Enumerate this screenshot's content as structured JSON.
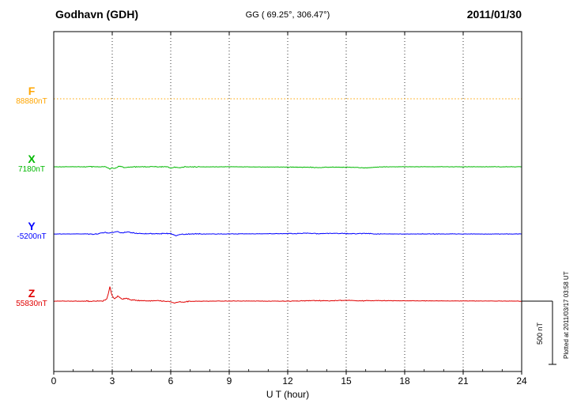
{
  "header": {
    "station": "Godhavn (GDH)",
    "coordinates": "GG ( 69.25°, 306.47°)",
    "date": "2011/01/30"
  },
  "footer": {
    "plotted_at": "Plotted at 2011/03/17 03:58 UT"
  },
  "chart_data": {
    "type": "line",
    "title": "Godhavn (GDH) magnetogram 2011/01/30",
    "xlabel": "U T (hour)",
    "xlim": [
      0,
      24
    ],
    "x_ticks": [
      0,
      3,
      6,
      9,
      12,
      15,
      18,
      21,
      24
    ],
    "grid": "vertical-dotted",
    "legend_position": "left",
    "scale_bar": {
      "label": "500 nT",
      "nT": 500
    },
    "series": [
      {
        "name": "F",
        "baseline_label": "88880nT",
        "color": "#FFA500",
        "style": "dotted",
        "noise_nT": 0.6,
        "points": [
          [
            0,
            0
          ],
          [
            24,
            0
          ]
        ]
      },
      {
        "name": "X",
        "baseline_label": "7180nT",
        "color": "#00B800",
        "style": "solid",
        "noise_nT": 3,
        "points": [
          [
            0,
            0
          ],
          [
            2.6,
            0
          ],
          [
            2.75,
            -8
          ],
          [
            2.9,
            -20
          ],
          [
            3.0,
            -6
          ],
          [
            3.15,
            -13
          ],
          [
            3.35,
            5
          ],
          [
            3.6,
            -5
          ],
          [
            4.0,
            -1
          ],
          [
            5.8,
            0
          ],
          [
            6.0,
            -9
          ],
          [
            6.2,
            -4
          ],
          [
            6.45,
            -8
          ],
          [
            6.7,
            -1
          ],
          [
            9.0,
            0
          ],
          [
            13.2,
            -4
          ],
          [
            13.6,
            -8
          ],
          [
            14.0,
            -2
          ],
          [
            15.5,
            -5
          ],
          [
            16.0,
            -9
          ],
          [
            16.5,
            -3
          ],
          [
            17.0,
            0
          ],
          [
            24,
            0
          ]
        ]
      },
      {
        "name": "Y",
        "baseline_label": "-5200nT",
        "color": "#0000FF",
        "style": "solid",
        "noise_nT": 3.5,
        "points": [
          [
            0,
            0
          ],
          [
            2.2,
            0
          ],
          [
            2.45,
            8
          ],
          [
            2.65,
            14
          ],
          [
            2.85,
            6
          ],
          [
            3.05,
            12
          ],
          [
            3.25,
            20
          ],
          [
            3.5,
            9
          ],
          [
            3.8,
            14
          ],
          [
            4.2,
            4
          ],
          [
            5.0,
            2
          ],
          [
            6.0,
            4
          ],
          [
            6.25,
            -13
          ],
          [
            6.5,
            -4
          ],
          [
            7.0,
            0
          ],
          [
            9.0,
            0
          ],
          [
            12.5,
            3
          ],
          [
            13.0,
            7
          ],
          [
            13.5,
            2
          ],
          [
            14.5,
            5
          ],
          [
            15.5,
            2
          ],
          [
            16.0,
            5
          ],
          [
            16.5,
            0
          ],
          [
            24,
            0
          ]
        ]
      },
      {
        "name": "Z",
        "baseline_label": "55830nT",
        "color": "#E00000",
        "style": "solid",
        "noise_nT": 3.5,
        "points": [
          [
            0,
            0
          ],
          [
            2.5,
            0
          ],
          [
            2.7,
            12
          ],
          [
            2.8,
            60
          ],
          [
            2.88,
            115
          ],
          [
            3.0,
            38
          ],
          [
            3.12,
            20
          ],
          [
            3.3,
            42
          ],
          [
            3.5,
            15
          ],
          [
            3.7,
            24
          ],
          [
            4.0,
            9
          ],
          [
            4.5,
            4
          ],
          [
            5.5,
            2
          ],
          [
            6.0,
            -5
          ],
          [
            6.2,
            -17
          ],
          [
            6.4,
            -5
          ],
          [
            6.6,
            -9
          ],
          [
            7.0,
            -1
          ],
          [
            9.0,
            1
          ],
          [
            12.0,
            0
          ],
          [
            13.5,
            5
          ],
          [
            14.0,
            2
          ],
          [
            15.2,
            7
          ],
          [
            15.6,
            2
          ],
          [
            16.0,
            4
          ],
          [
            24,
            0
          ]
        ]
      }
    ]
  }
}
